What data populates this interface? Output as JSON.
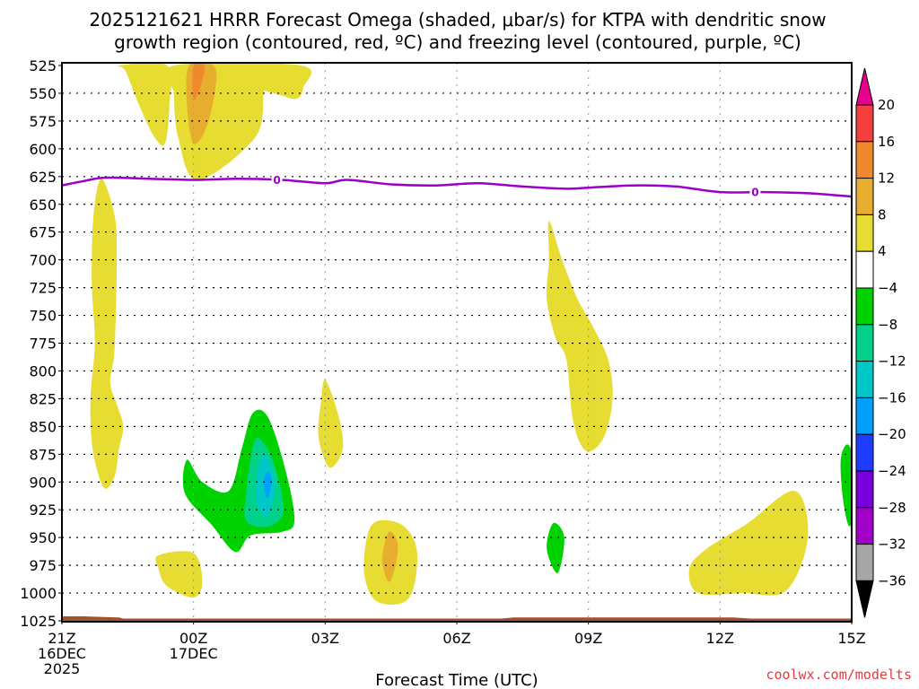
{
  "chart_data": {
    "type": "heatmap",
    "title_lines": [
      "2025121621 HRRR Forecast Omega (shaded, μbar/s) for KTPA with dendritic snow",
      "growth region (contoured, red, ºC) and freezing level (contoured, purple, ºC)"
    ],
    "xlabel": "Forecast Time (UTC)",
    "ylabel": "",
    "credit": "coolwx.com/modelts",
    "x_unit": "hours since 21Z 16DEC 2025",
    "xlim": [
      0,
      18
    ],
    "ylim": [
      525,
      1025
    ],
    "y_inverted": true,
    "grid": true,
    "x_ticks": [
      {
        "value": 0,
        "lines": [
          "21Z",
          "16DEC",
          "2025"
        ]
      },
      {
        "value": 3,
        "lines": [
          "00Z",
          "17DEC"
        ]
      },
      {
        "value": 6,
        "lines": [
          "03Z"
        ]
      },
      {
        "value": 9,
        "lines": [
          "06Z"
        ]
      },
      {
        "value": 12,
        "lines": [
          "09Z"
        ]
      },
      {
        "value": 15,
        "lines": [
          "12Z"
        ]
      },
      {
        "value": 18,
        "lines": [
          "15Z"
        ]
      }
    ],
    "y_ticks": [
      525,
      550,
      575,
      600,
      625,
      650,
      675,
      700,
      725,
      750,
      775,
      800,
      825,
      850,
      875,
      900,
      925,
      950,
      975,
      1000,
      1025
    ],
    "colorbar": {
      "label_values": [
        20,
        16,
        12,
        8,
        4,
        -4,
        -8,
        -12,
        -16,
        -20,
        -24,
        -28,
        -32,
        -36
      ],
      "segments": [
        {
          "from": 20,
          "to": null,
          "color": "#e8008c",
          "shape": "arrow-up"
        },
        {
          "from": 16,
          "to": 20,
          "color": "#f53f3f"
        },
        {
          "from": 12,
          "to": 16,
          "color": "#f0882e"
        },
        {
          "from": 8,
          "to": 12,
          "color": "#e6ad2e"
        },
        {
          "from": 4,
          "to": 8,
          "color": "#e6dc32"
        },
        {
          "from": -4,
          "to": 4,
          "color": "#ffffff"
        },
        {
          "from": -8,
          "to": -4,
          "color": "#00d200"
        },
        {
          "from": -12,
          "to": -8,
          "color": "#00d28c"
        },
        {
          "from": -16,
          "to": -12,
          "color": "#00c8c8"
        },
        {
          "from": -20,
          "to": -16,
          "color": "#00a0ff"
        },
        {
          "from": -24,
          "to": -20,
          "color": "#1e3cff"
        },
        {
          "from": -28,
          "to": -24,
          "color": "#7800dc"
        },
        {
          "from": -32,
          "to": -28,
          "color": "#a000c8"
        },
        {
          "from": -36,
          "to": -32,
          "color": "#a6a6a6"
        },
        {
          "from": null,
          "to": -36,
          "color": "#000000",
          "shape": "arrow-down"
        }
      ]
    },
    "omega_regions": [
      {
        "name": "yellow-plume-upper-left",
        "level": "4 to 8",
        "color": "#e6dc32",
        "points": [
          [
            1.3,
            525
          ],
          [
            2.4,
            525
          ],
          [
            2.45,
            560
          ],
          [
            2.35,
            595
          ],
          [
            2.1,
            589
          ],
          [
            1.75,
            560
          ],
          [
            1.45,
            530
          ]
        ]
      },
      {
        "name": "yellow-plume-upper-center",
        "level": "4 to 8",
        "color": "#e6dc32",
        "points": [
          [
            2.55,
            525
          ],
          [
            5.45,
            525
          ],
          [
            5.5,
            545
          ],
          [
            5.35,
            555
          ],
          [
            5.0,
            552
          ],
          [
            4.65,
            548
          ],
          [
            4.6,
            550
          ],
          [
            4.4,
            590
          ],
          [
            3.1,
            628
          ],
          [
            2.65,
            590
          ],
          [
            2.55,
            550
          ]
        ]
      },
      {
        "name": "orange-core-upper-center",
        "level": "8 to 12",
        "color": "#e6ad2e",
        "points": [
          [
            2.9,
            525
          ],
          [
            3.45,
            525
          ],
          [
            3.5,
            545
          ],
          [
            3.3,
            580
          ],
          [
            3.0,
            595
          ],
          [
            2.85,
            560
          ]
        ]
      },
      {
        "name": "orange-peak-upper-center",
        "level": "12 to 16",
        "color": "#f0882e",
        "points": [
          [
            3.0,
            525
          ],
          [
            3.25,
            525
          ],
          [
            3.15,
            545
          ],
          [
            3.0,
            555
          ]
        ]
      },
      {
        "name": "yellow-column-left",
        "level": "4 to 8",
        "color": "#e6dc32",
        "points": [
          [
            0.9,
            627
          ],
          [
            1.2,
            660
          ],
          [
            1.25,
            700
          ],
          [
            1.2,
            780
          ],
          [
            1.1,
            810
          ],
          [
            1.25,
            830
          ],
          [
            1.4,
            850
          ],
          [
            1.3,
            870
          ],
          [
            1.2,
            895
          ],
          [
            0.95,
            905
          ],
          [
            0.7,
            870
          ],
          [
            0.65,
            825
          ],
          [
            0.75,
            775
          ],
          [
            0.68,
            720
          ],
          [
            0.72,
            660
          ]
        ]
      },
      {
        "name": "green-region-lower-left",
        "level": "-8 to -4",
        "color": "#00d200",
        "points": [
          [
            2.85,
            880
          ],
          [
            3.2,
            900
          ],
          [
            3.8,
            908
          ],
          [
            4.1,
            870
          ],
          [
            4.35,
            838
          ],
          [
            4.7,
            842
          ],
          [
            5.1,
            890
          ],
          [
            5.3,
            935
          ],
          [
            5.0,
            945
          ],
          [
            4.3,
            948
          ],
          [
            3.95,
            963
          ],
          [
            3.4,
            938
          ],
          [
            2.8,
            910
          ]
        ]
      },
      {
        "name": "teal-region-lower-left",
        "level": "-12 to -8",
        "color": "#00d28c",
        "points": [
          [
            4.45,
            860
          ],
          [
            4.8,
            880
          ],
          [
            5.05,
            925
          ],
          [
            4.7,
            940
          ],
          [
            4.2,
            935
          ],
          [
            4.2,
            910
          ],
          [
            4.3,
            880
          ]
        ]
      },
      {
        "name": "cyan-region-lower-left",
        "level": "-16 to -12",
        "color": "#00c8c8",
        "points": [
          [
            4.6,
            875
          ],
          [
            4.85,
            900
          ],
          [
            4.7,
            930
          ],
          [
            4.45,
            920
          ],
          [
            4.45,
            895
          ]
        ]
      },
      {
        "name": "blue-core-lower-left",
        "level": "-20 to -16",
        "color": "#00a0ff",
        "points": [
          [
            4.7,
            890
          ],
          [
            4.78,
            900
          ],
          [
            4.68,
            915
          ],
          [
            4.6,
            900
          ]
        ]
      },
      {
        "name": "yellow-small-near-03z",
        "level": "4 to 8",
        "color": "#e6dc32",
        "points": [
          [
            6.0,
            808
          ],
          [
            6.3,
            840
          ],
          [
            6.4,
            870
          ],
          [
            6.1,
            887
          ],
          [
            5.85,
            860
          ],
          [
            5.9,
            830
          ]
        ]
      },
      {
        "name": "yellow-blob-lower-left",
        "level": "4 to 8",
        "color": "#e6dc32",
        "points": [
          [
            2.2,
            966
          ],
          [
            3.0,
            964
          ],
          [
            3.2,
            990
          ],
          [
            3.0,
            1004
          ],
          [
            2.4,
            994
          ],
          [
            2.2,
            978
          ]
        ]
      },
      {
        "name": "yellow-blob-near-04z",
        "level": "4 to 8",
        "color": "#e6dc32",
        "points": [
          [
            7.2,
            935
          ],
          [
            7.8,
            940
          ],
          [
            8.1,
            965
          ],
          [
            7.9,
            1005
          ],
          [
            7.2,
            1008
          ],
          [
            6.9,
            985
          ],
          [
            6.95,
            950
          ]
        ]
      },
      {
        "name": "orange-core-near-04z",
        "level": "8 to 12",
        "color": "#e6ad2e",
        "points": [
          [
            7.45,
            945
          ],
          [
            7.65,
            955
          ],
          [
            7.6,
            975
          ],
          [
            7.45,
            990
          ],
          [
            7.3,
            970
          ]
        ]
      },
      {
        "name": "yellow-tail-near-08z",
        "level": "4 to 8",
        "color": "#e6dc32",
        "points": [
          [
            11.1,
            665
          ],
          [
            11.4,
            700
          ],
          [
            11.75,
            735
          ],
          [
            12.1,
            760
          ],
          [
            12.45,
            790
          ],
          [
            12.55,
            825
          ],
          [
            12.35,
            860
          ],
          [
            11.95,
            872
          ],
          [
            11.65,
            845
          ],
          [
            11.5,
            790
          ],
          [
            11.25,
            770
          ],
          [
            11.05,
            735
          ],
          [
            11.1,
            700
          ]
        ]
      },
      {
        "name": "green-small-near-08z",
        "level": "-8 to -4",
        "color": "#00d200",
        "points": [
          [
            11.2,
            937
          ],
          [
            11.45,
            950
          ],
          [
            11.3,
            982
          ],
          [
            11.05,
            960
          ]
        ]
      },
      {
        "name": "yellow-region-lower-right",
        "level": "4 to 8",
        "color": "#e6dc32",
        "points": [
          [
            14.3,
            978
          ],
          [
            14.7,
            960
          ],
          [
            15.6,
            938
          ],
          [
            16.7,
            908
          ],
          [
            17.0,
            950
          ],
          [
            16.5,
            998
          ],
          [
            15.5,
            1000
          ],
          [
            14.5,
            1000
          ]
        ]
      },
      {
        "name": "green-small-near-14z",
        "level": "-8 to -4",
        "color": "#00d200",
        "points": [
          [
            17.9,
            866
          ],
          [
            18.05,
            880
          ],
          [
            18.1,
            915
          ],
          [
            17.95,
            940
          ],
          [
            17.8,
            915
          ],
          [
            17.75,
            880
          ]
        ]
      }
    ],
    "freezing_level_contour": {
      "label": "0",
      "color": "#9a00c8",
      "points": [
        [
          0,
          633
        ],
        [
          0.5,
          629
        ],
        [
          1.0,
          626
        ],
        [
          2.0,
          627
        ],
        [
          3.0,
          628
        ],
        [
          4.0,
          627
        ],
        [
          5.0,
          628
        ],
        [
          6.0,
          631
        ],
        [
          6.5,
          628
        ],
        [
          7.5,
          632
        ],
        [
          8.5,
          633
        ],
        [
          9.5,
          631
        ],
        [
          10.5,
          634
        ],
        [
          11.5,
          636
        ],
        [
          12.0,
          635
        ],
        [
          13.0,
          633
        ],
        [
          14.0,
          634
        ],
        [
          15.0,
          639
        ],
        [
          16.0,
          639
        ],
        [
          17.0,
          640
        ],
        [
          18.0,
          643
        ]
      ],
      "label_positions": [
        4.9,
        15.8
      ]
    },
    "terrain": {
      "color": "#a0522d",
      "top_levels": [
        [
          0,
          1021
        ],
        [
          0.5,
          1021
        ],
        [
          1.3,
          1022
        ],
        [
          1.4,
          1023
        ],
        [
          10.0,
          1023
        ],
        [
          10.3,
          1022
        ],
        [
          15.3,
          1022
        ],
        [
          15.7,
          1023
        ],
        [
          18,
          1023
        ]
      ]
    }
  }
}
